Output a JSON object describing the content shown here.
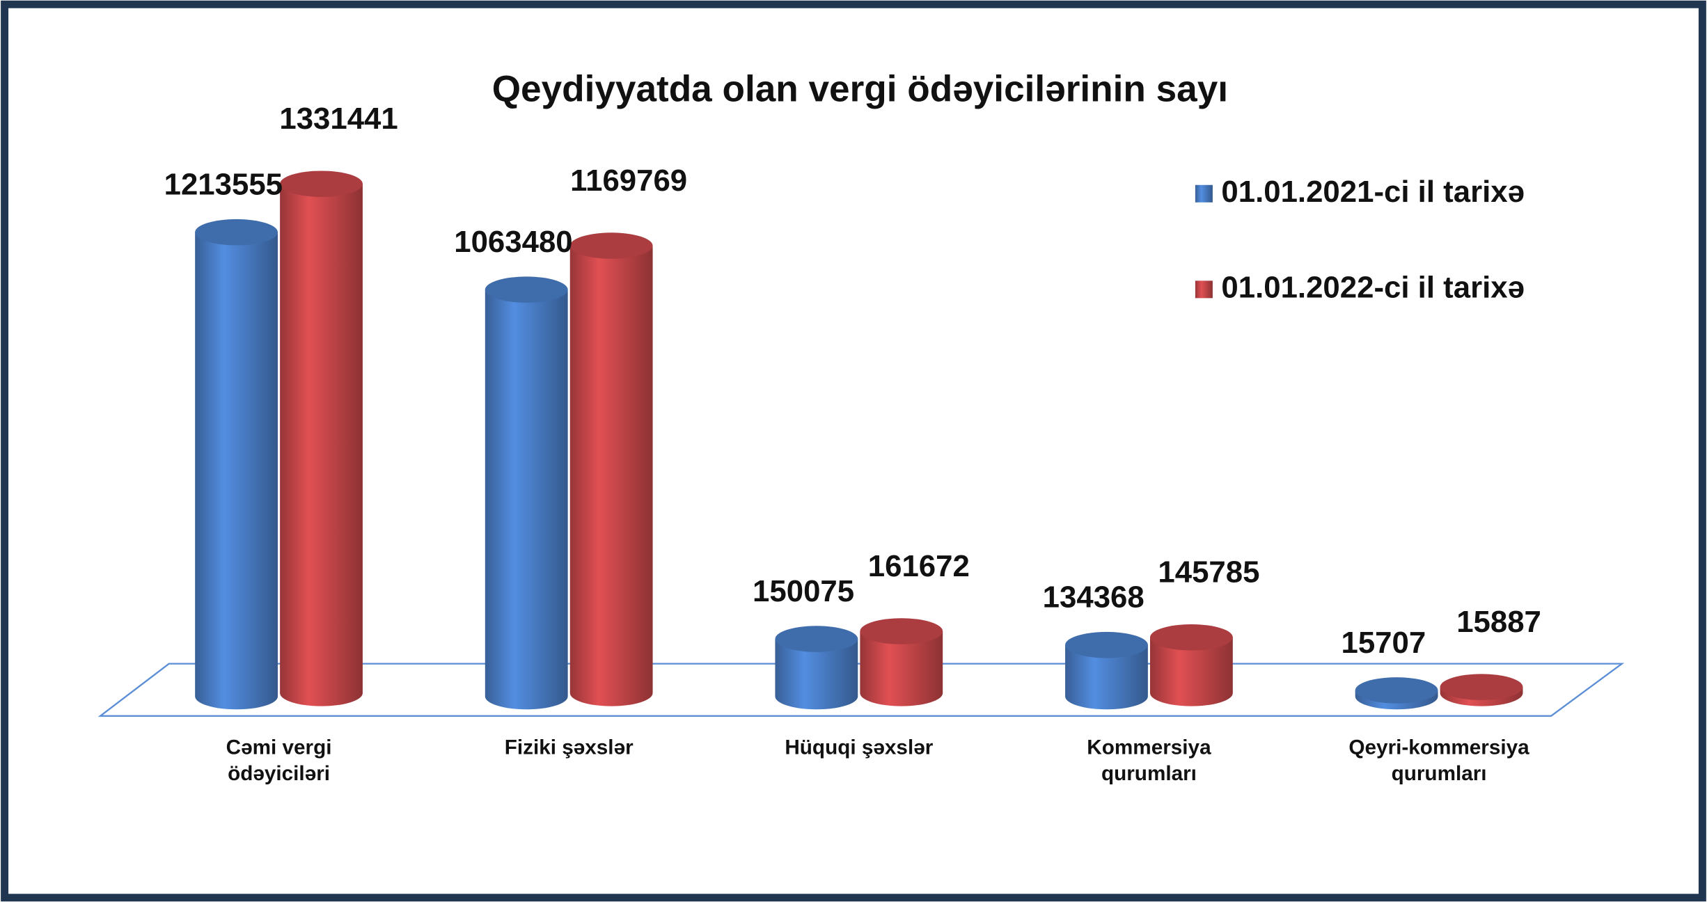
{
  "chart_data": {
    "type": "bar3d",
    "title": "Qeydiyyatda olan vergi ödəyicilərinin  sayı",
    "categories": [
      "Cəmi vergi ödəyiciləri",
      "Fiziki şəxslər",
      "Hüquqi şəxslər",
      "Kommersiya qurumları",
      "Qeyri-kommersiya qurumları"
    ],
    "series": [
      {
        "name": "01.01.2021-ci il tarixə",
        "color": "#4a7fc9",
        "values": [
          1213555,
          1063480,
          150075,
          134368,
          15707
        ]
      },
      {
        "name": "01.01.2022-ci il tarixə",
        "color": "#c9474a",
        "values": [
          1331441,
          1169769,
          161672,
          145785,
          15887
        ]
      }
    ],
    "legend": "upper right"
  }
}
